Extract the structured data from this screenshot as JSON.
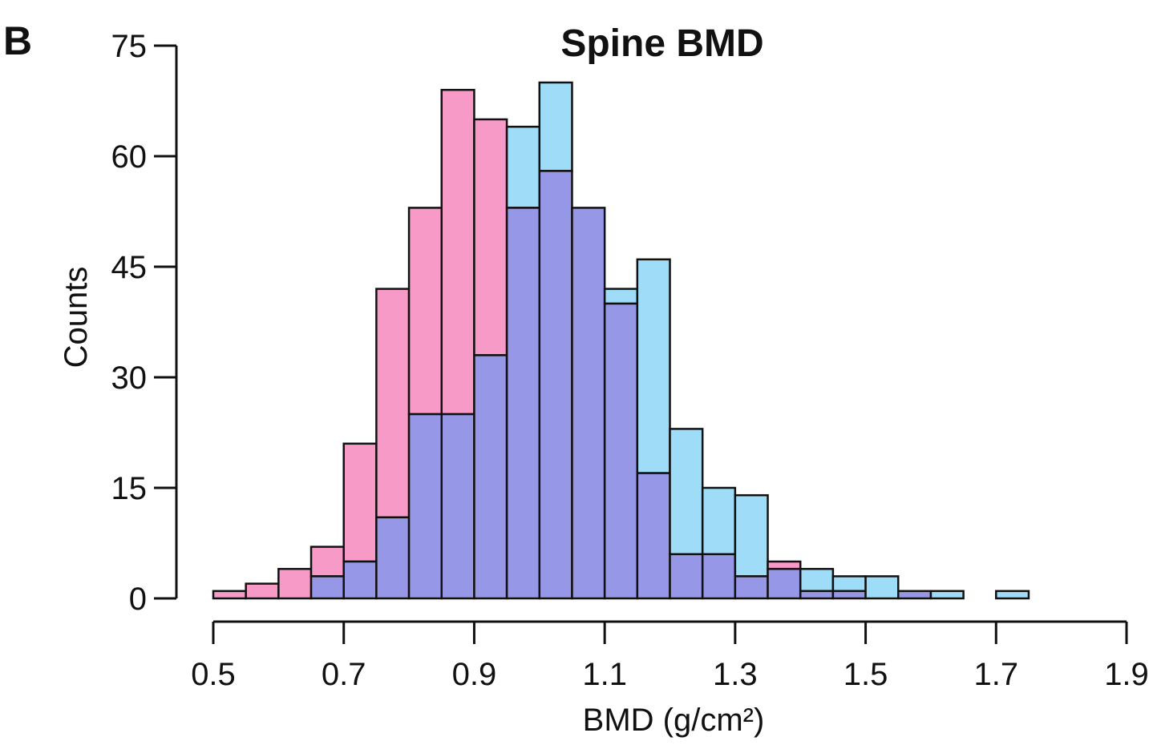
{
  "panel_label": "B",
  "chart_data": {
    "type": "bar",
    "title": "Spine BMD",
    "xlabel": "BMD (g/cm²)",
    "ylabel": "Counts",
    "xlim": [
      0.5,
      1.9
    ],
    "ylim": [
      0,
      75
    ],
    "xticks": [
      "0.5",
      "0.7",
      "0.9",
      "1.1",
      "1.3",
      "1.5",
      "1.7",
      "1.9"
    ],
    "yticks": [
      "0",
      "15",
      "30",
      "45",
      "60",
      "75"
    ],
    "bin_width": 0.05,
    "bin_starts": [
      0.5,
      0.55,
      0.6,
      0.65,
      0.7,
      0.75,
      0.8,
      0.85,
      0.9,
      0.95,
      1.0,
      1.05,
      1.1,
      1.15,
      1.2,
      1.25,
      1.3,
      1.35,
      1.4,
      1.45,
      1.5,
      1.55,
      1.6,
      1.65,
      1.7
    ],
    "series": [
      {
        "color": "#f79ac7",
        "values": [
          1,
          2,
          4,
          7,
          21,
          42,
          53,
          69,
          65,
          53,
          58,
          53,
          40,
          17,
          6,
          6,
          3,
          5,
          1,
          1,
          0,
          1,
          0,
          0,
          0
        ]
      },
      {
        "color": "#9fdcf8",
        "values": [
          0,
          0,
          0,
          3,
          5,
          11,
          25,
          25,
          33,
          64,
          70,
          53,
          42,
          46,
          23,
          15,
          14,
          4,
          4,
          3,
          3,
          1,
          1,
          0,
          1
        ]
      }
    ],
    "overlap_color": "#9797e8",
    "grid": false,
    "legend": "none"
  }
}
